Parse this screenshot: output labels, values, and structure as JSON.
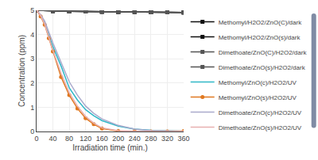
{
  "chart_data": {
    "type": "line",
    "xlabel": "Irradiation time (min.)",
    "ylabel": "Concentration (ppm)",
    "xlim": [
      0,
      360
    ],
    "ylim": [
      0,
      5
    ],
    "xticks": [
      0,
      40,
      80,
      120,
      160,
      200,
      240,
      280,
      320,
      360
    ],
    "yticks": [
      0,
      1,
      2,
      3,
      4,
      5
    ],
    "grid": true,
    "legend": "right",
    "series": [
      {
        "name": "Methomyl/H2O2/ZnO(C)/dark",
        "color": "#111111",
        "marker": "square",
        "line_style": "solid",
        "x": [
          0,
          40,
          80,
          120,
          160,
          200,
          240,
          280,
          320,
          360
        ],
        "values": [
          5.0,
          4.97,
          4.96,
          4.95,
          4.94,
          4.93,
          4.93,
          4.92,
          4.92,
          4.91
        ]
      },
      {
        "name": "Methomyl/H2O2/ZnO(s)/dark",
        "color": "#111111",
        "marker": "square",
        "line_style": "solid",
        "x": [
          0,
          40,
          80,
          120,
          160,
          200,
          240,
          280,
          320,
          360
        ],
        "values": [
          5.0,
          4.97,
          4.96,
          4.95,
          4.94,
          4.93,
          4.93,
          4.92,
          4.92,
          4.91
        ]
      },
      {
        "name": "Dimethoate/ZnO(C)/H2O2/dark",
        "color": "#555555",
        "marker": "square",
        "line_style": "solid",
        "x": [
          0,
          40,
          80,
          120,
          160,
          200,
          240,
          280,
          320,
          360
        ],
        "values": [
          5.0,
          4.97,
          4.96,
          4.95,
          4.94,
          4.93,
          4.93,
          4.92,
          4.92,
          4.91
        ]
      },
      {
        "name": "Dimethoate/ZnO(s)/H2O2/dark",
        "color": "#555555",
        "marker": "square",
        "line_style": "solid",
        "x": [
          0,
          40,
          80,
          120,
          160,
          200,
          240,
          280,
          320,
          360
        ],
        "values": [
          5.0,
          4.97,
          4.96,
          4.95,
          4.94,
          4.93,
          4.93,
          4.92,
          4.92,
          4.91
        ]
      },
      {
        "name": "Methomyl/ZnO(c)/H2O2/UV",
        "color": "#30b8c8",
        "line_style": "solid",
        "x": [
          0,
          10,
          20,
          30,
          40,
          60,
          80,
          100,
          120,
          140,
          160,
          200,
          240,
          280,
          320,
          360
        ],
        "values": [
          5.0,
          4.8,
          4.45,
          3.95,
          3.5,
          2.7,
          1.8,
          1.3,
          0.9,
          0.65,
          0.45,
          0.22,
          0.1,
          0.05,
          0.025,
          0.01
        ]
      },
      {
        "name": "Methomyl/ZnO(s)/H2O2/UV",
        "color": "#e07820",
        "marker": "circle",
        "line_style": "solid",
        "x": [
          0,
          10,
          20,
          30,
          40,
          60,
          80,
          100,
          120,
          140,
          160,
          200,
          240,
          280,
          320,
          360
        ],
        "values": [
          5.0,
          4.75,
          4.4,
          3.85,
          3.3,
          2.25,
          1.5,
          0.95,
          0.55,
          0.3,
          0.12,
          0.02,
          0.005,
          0.002,
          0.002,
          0.02
        ]
      },
      {
        "name": "Dimethoate/ZnO(c)/H2O2/UV",
        "color": "#aaaacc",
        "line_style": "solid",
        "x": [
          0,
          10,
          20,
          30,
          40,
          60,
          80,
          100,
          120,
          140,
          160,
          200,
          240,
          280,
          320,
          360
        ],
        "values": [
          5.0,
          4.82,
          4.55,
          4.1,
          3.65,
          2.85,
          2.05,
          1.5,
          1.05,
          0.75,
          0.52,
          0.25,
          0.1,
          0.04,
          0.018,
          0.008
        ]
      },
      {
        "name": "Dimethoate/ZnO(s)/H2O2/UV",
        "color": "#e8b0b0",
        "line_style": "solid",
        "x": [
          0,
          10,
          20,
          30,
          40,
          60,
          80,
          100,
          120,
          140,
          160,
          200,
          240,
          280,
          320,
          360
        ],
        "values": [
          5.0,
          4.78,
          4.42,
          3.88,
          3.35,
          2.4,
          1.6,
          1.05,
          0.62,
          0.35,
          0.15,
          0.03,
          0.007,
          0.003,
          0.002,
          0.02
        ]
      }
    ]
  }
}
